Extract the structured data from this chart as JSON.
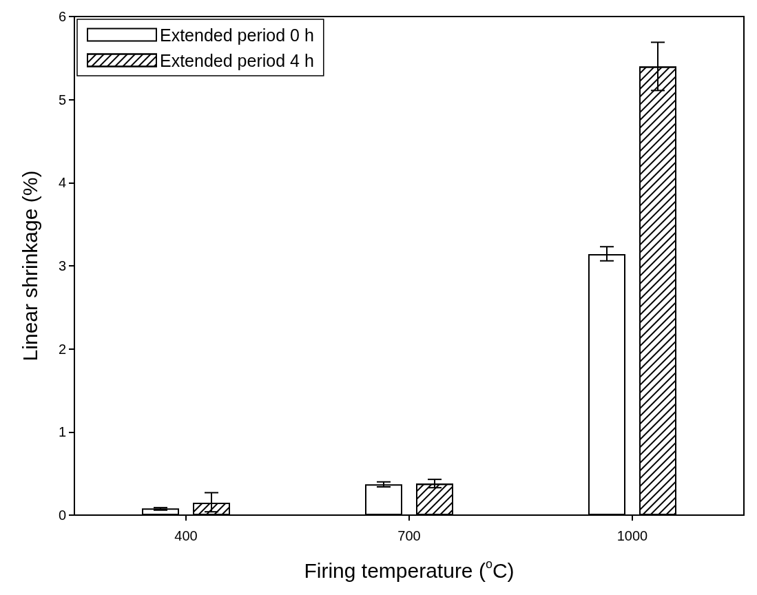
{
  "chart_data": {
    "type": "bar",
    "xlabel": "Firing temperature ($^{o}$C)",
    "ylabel": "Linear shrinkage (%)",
    "categories": [
      "400",
      "700",
      "1000"
    ],
    "series": [
      {
        "name": "Extended period 0 h",
        "color": "#ffffff",
        "values": [
          0.08,
          0.37,
          3.14
        ],
        "errors": [
          [
            0.06,
            0.09
          ],
          [
            0.34,
            0.4
          ],
          [
            3.06,
            3.23
          ]
        ]
      },
      {
        "name": "Extended period 4 h",
        "color": "#ffffff",
        "values": [
          0.15,
          0.38,
          5.4
        ],
        "errors": [
          [
            0.04,
            0.27
          ],
          [
            0.33,
            0.43
          ],
          [
            5.11,
            5.69
          ]
        ]
      }
    ],
    "ylim": [
      0,
      6
    ],
    "yticks": [
      0,
      1,
      2,
      3,
      4,
      5,
      6
    ],
    "grid": false,
    "legend": "top left"
  }
}
